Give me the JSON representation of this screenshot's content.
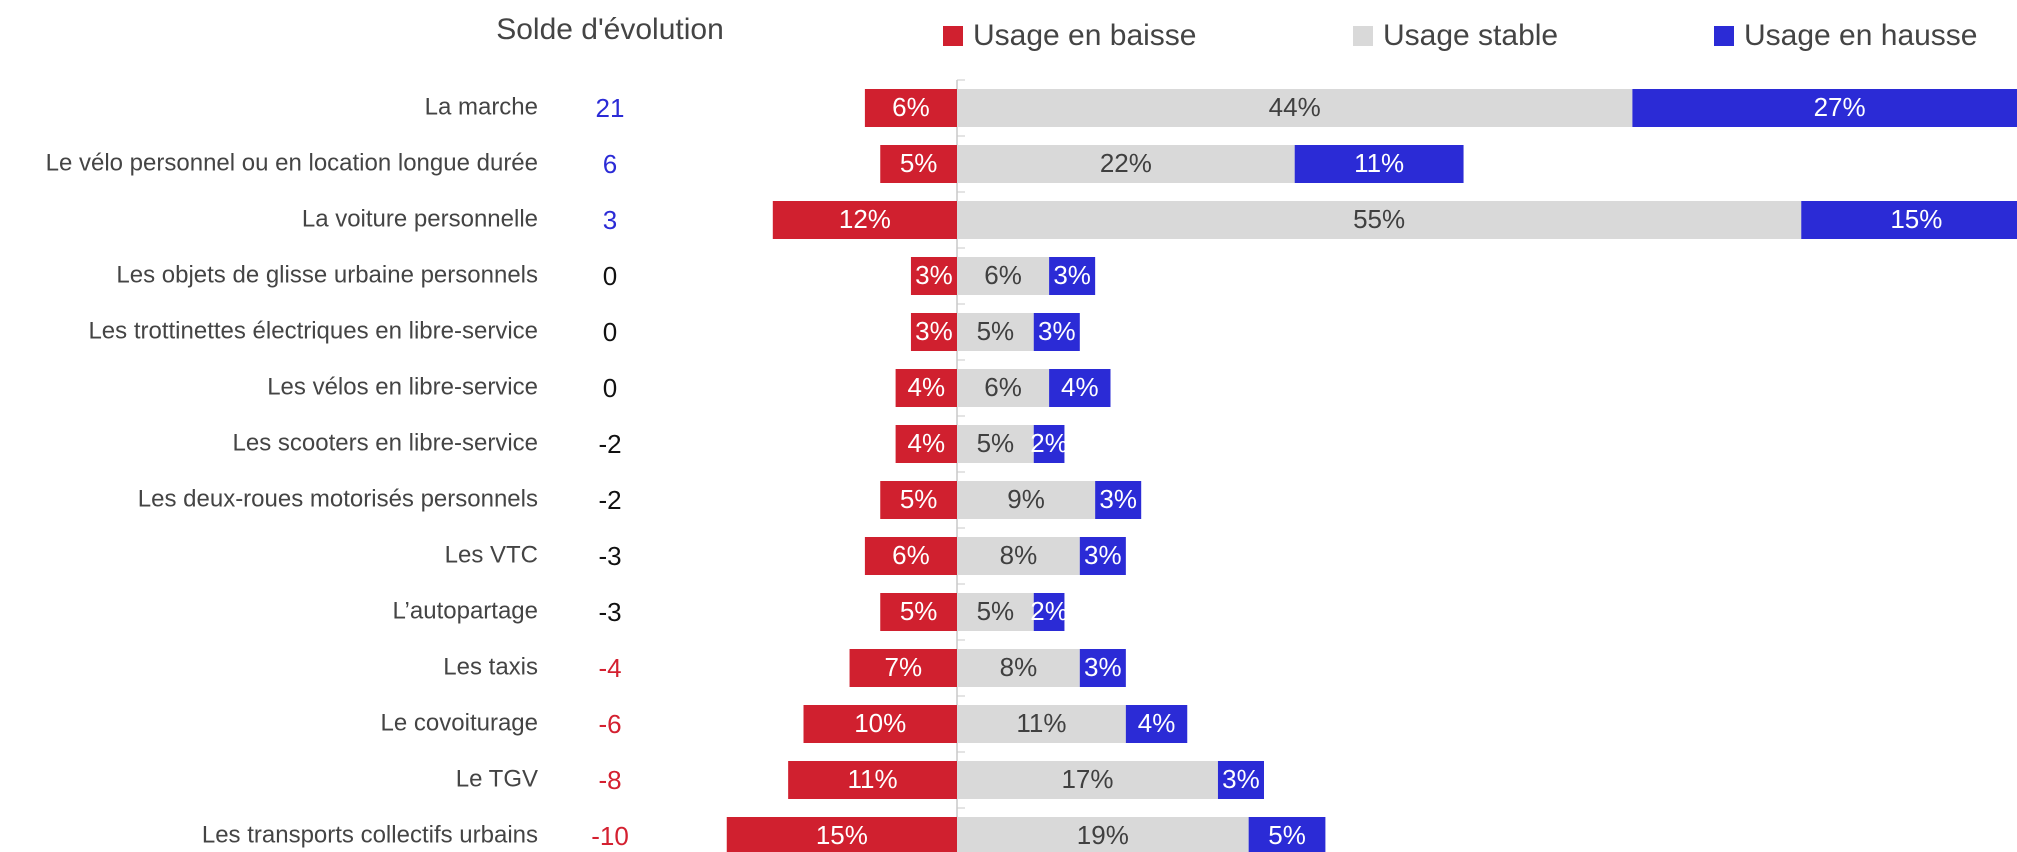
{
  "chart_data": {
    "type": "bar",
    "solde_title": "Solde d'évolution",
    "categories": [
      "La marche",
      "Le vélo personnel ou en location longue durée",
      "La voiture personnelle",
      "Les objets de glisse urbaine personnels",
      "Les trottinettes électriques en libre-service",
      "Les vélos en libre-service",
      "Les scooters en libre-service",
      "Les deux-roues motorisés personnels",
      "Les VTC",
      "L’autopartage",
      "Les taxis",
      "Le covoiturage",
      "Le TGV",
      "Les transports collectifs urbains"
    ],
    "solde": [
      21,
      6,
      3,
      0,
      0,
      0,
      -2,
      -2,
      -3,
      -3,
      -4,
      -6,
      -8,
      -10
    ],
    "solde_colors": [
      "#2b2bd6",
      "#2b2bd6",
      "#2b2bd6",
      "#111111",
      "#111111",
      "#111111",
      "#111111",
      "#111111",
      "#111111",
      "#111111",
      "#d42030",
      "#d42030",
      "#d42030",
      "#d42030"
    ],
    "series": [
      {
        "name": "Usage en baisse",
        "color": "#d0202f",
        "label_color": "#ffffff",
        "values": [
          6,
          5,
          12,
          3,
          3,
          4,
          4,
          5,
          6,
          5,
          7,
          10,
          11,
          15
        ],
        "value_labels": [
          "6%",
          "5%",
          "12%",
          "3%",
          "3%",
          "4%",
          "4%",
          "5%",
          "6%",
          "5%",
          "7%",
          "10%",
          "11%",
          "15%"
        ]
      },
      {
        "name": "Usage stable",
        "color": "#d9d9d9",
        "label_color": "#404040",
        "values": [
          44,
          22,
          55,
          6,
          5,
          6,
          5,
          9,
          8,
          5,
          8,
          11,
          17,
          19
        ],
        "value_labels": [
          "44%",
          "22%",
          "55%",
          "6%",
          "5%",
          "6%",
          "5%",
          "9%",
          "8%",
          "5%",
          "8%",
          "11%",
          "17%",
          "19%"
        ]
      },
      {
        "name": "Usage en hausse",
        "color": "#2b2bd6",
        "label_color": "#ffffff",
        "values": [
          27,
          11,
          15,
          3,
          3,
          4,
          2,
          3,
          3,
          2,
          3,
          4,
          3,
          5
        ],
        "value_labels": [
          "27%",
          "11%",
          "15%",
          "3%",
          "3%",
          "4%",
          "2%",
          "3%",
          "3%",
          "2%",
          "3%",
          "4%",
          "3%",
          "5%"
        ]
      }
    ]
  }
}
